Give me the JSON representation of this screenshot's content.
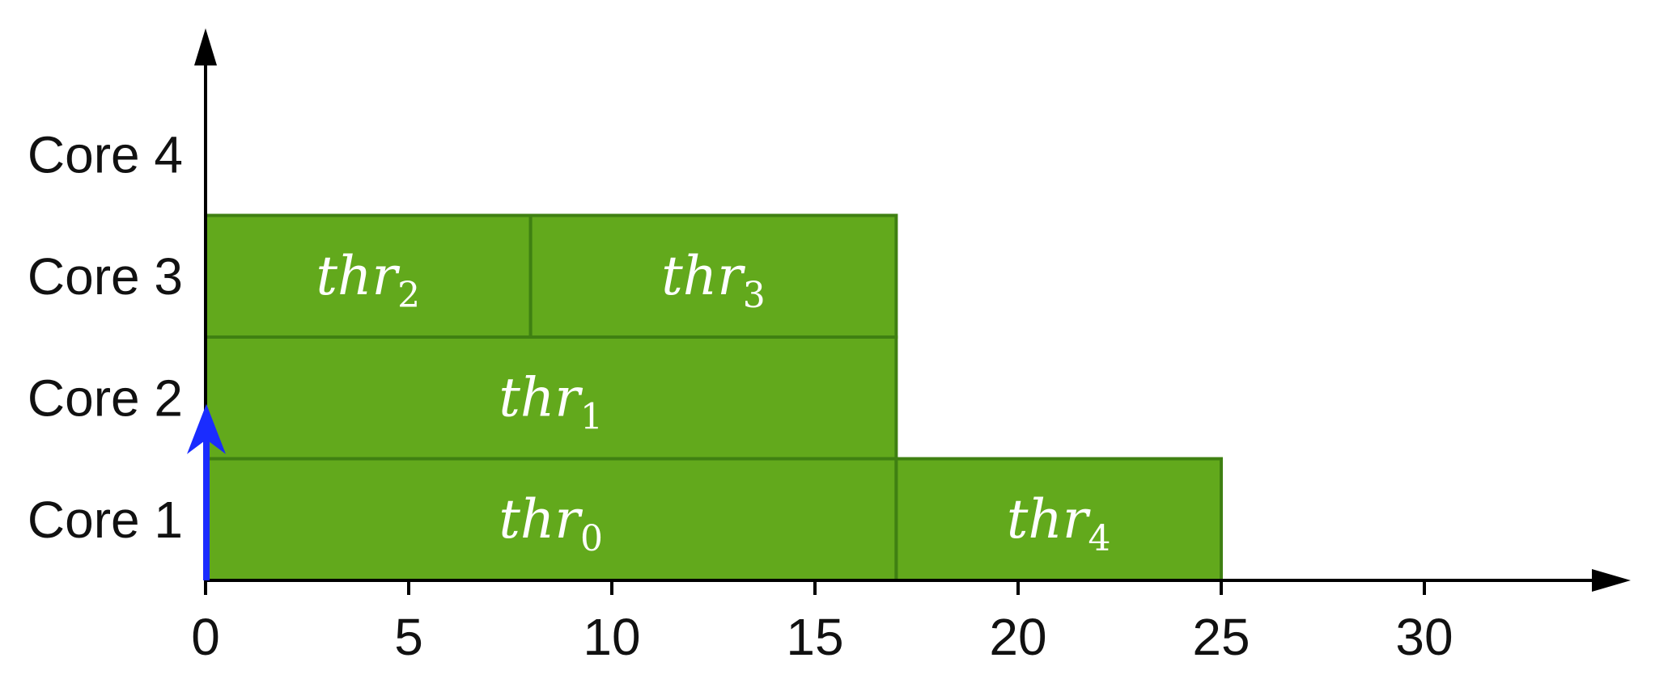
{
  "chart_data": {
    "type": "gantt",
    "title": "",
    "xlabel": "",
    "ylabel": "",
    "xlim": [
      0,
      35
    ],
    "xticks": [
      0,
      5,
      10,
      15,
      20,
      25,
      30
    ],
    "rows": [
      "Core 1",
      "Core 2",
      "Core 3",
      "Core 4"
    ],
    "tasks": [
      {
        "base": "thr",
        "sub": "0",
        "row": 0,
        "start": 0,
        "end": 17
      },
      {
        "base": "thr",
        "sub": "4",
        "row": 0,
        "start": 17,
        "end": 25
      },
      {
        "base": "thr",
        "sub": "1",
        "row": 1,
        "start": 0,
        "end": 17
      },
      {
        "base": "thr",
        "sub": "2",
        "row": 2,
        "start": 0,
        "end": 8
      },
      {
        "base": "thr",
        "sub": "3",
        "row": 2,
        "start": 8,
        "end": 17
      }
    ],
    "marker": {
      "x": 0,
      "from_row": 0,
      "to_row": 1,
      "color": "#1a2cff"
    },
    "colors": {
      "bar_fill": "#62a91c",
      "bar_stroke": "#3f8012",
      "axis": "#000000"
    }
  }
}
